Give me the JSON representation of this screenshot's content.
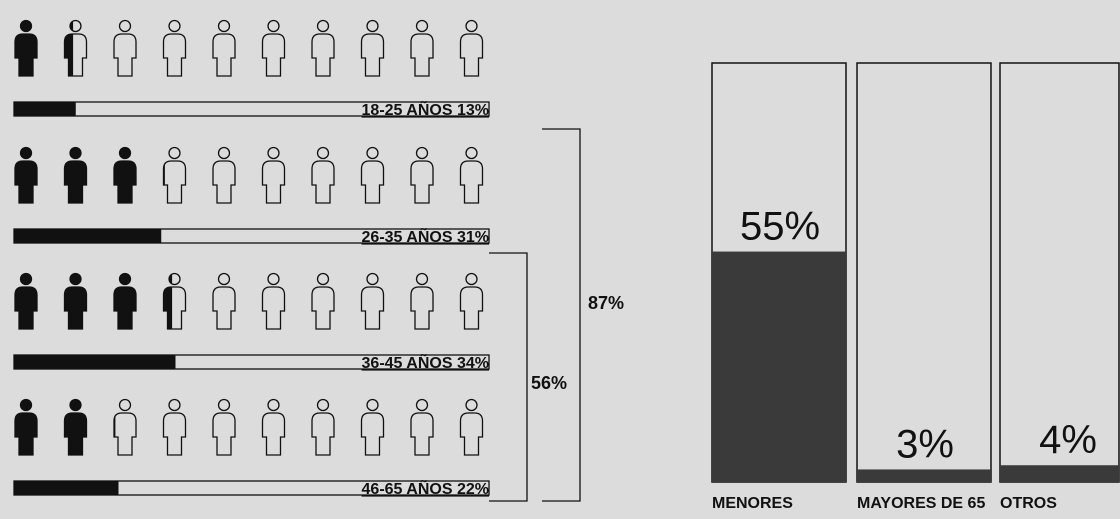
{
  "colors": {
    "background": "#dcdcdc",
    "dark": "#111111",
    "bar_fill": "#3a3a3a",
    "outline": "#111111",
    "box_fill": "#dcdcdc"
  },
  "chart_data": [
    {
      "type": "bar",
      "orientation": "horizontal",
      "icon_scale": 10,
      "categories": [
        "18-25 AÑOS",
        "26-35 AÑOS",
        "36-45 AÑOS",
        "46-65 AÑOS"
      ],
      "values": [
        13,
        31,
        34,
        22
      ],
      "value_labels": [
        "13%",
        "31%",
        "34%",
        "22%"
      ],
      "brackets": [
        {
          "label": "87%",
          "from_index": 1,
          "to_index": 3
        },
        {
          "label": "56%",
          "from_index": 2,
          "to_index": 3
        }
      ]
    },
    {
      "type": "bar",
      "categories": [
        "MENORES",
        "MAYORES DE 65",
        "OTROS"
      ],
      "values": [
        55,
        3,
        4
      ],
      "value_labels": [
        "55%",
        "3%",
        "4%"
      ],
      "ylim": [
        0,
        100
      ]
    }
  ]
}
